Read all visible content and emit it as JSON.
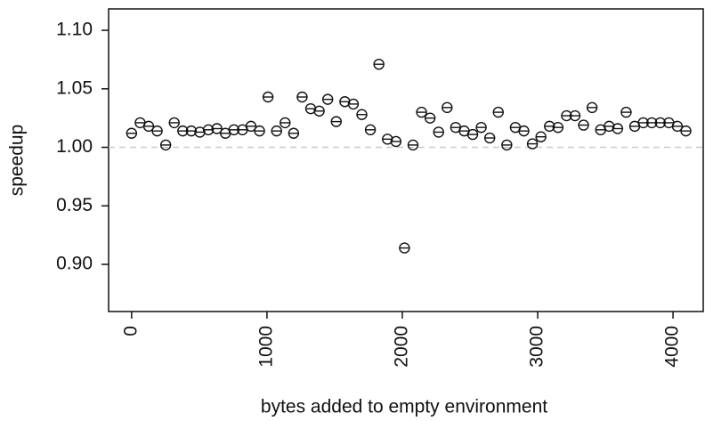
{
  "chart_data": {
    "type": "scatter",
    "x_label": "bytes added to empty environment",
    "y_label": "speedup",
    "x": [
      0,
      63,
      126,
      189,
      252,
      315,
      378,
      441,
      504,
      567,
      630,
      693,
      756,
      819,
      882,
      945,
      1008,
      1071,
      1134,
      1197,
      1260,
      1323,
      1386,
      1449,
      1512,
      1575,
      1638,
      1701,
      1764,
      1827,
      1890,
      1953,
      2016,
      2079,
      2142,
      2205,
      2268,
      2331,
      2394,
      2457,
      2520,
      2583,
      2646,
      2709,
      2772,
      2835,
      2898,
      2961,
      3024,
      3087,
      3150,
      3213,
      3276,
      3339,
      3402,
      3465,
      3528,
      3591,
      3654,
      3717,
      3780,
      3843,
      3906,
      3969,
      4032,
      4095
    ],
    "values": [
      1.012,
      1.021,
      1.018,
      1.014,
      1.002,
      1.021,
      1.014,
      1.014,
      1.013,
      1.015,
      1.016,
      1.012,
      1.015,
      1.015,
      1.018,
      1.014,
      1.043,
      1.014,
      1.021,
      1.012,
      1.043,
      1.033,
      1.031,
      1.041,
      1.022,
      1.039,
      1.037,
      1.028,
      1.015,
      1.071,
      1.007,
      1.005,
      0.914,
      1.002,
      1.03,
      1.025,
      1.013,
      1.034,
      1.017,
      1.014,
      1.011,
      1.017,
      1.008,
      1.03,
      1.002,
      1.017,
      1.014,
      1.003,
      1.009,
      1.018,
      1.017,
      1.027,
      1.027,
      1.019,
      1.034,
      1.015,
      1.018,
      1.016,
      1.03,
      1.018,
      1.021,
      1.021,
      1.021,
      1.021,
      1.018,
      1.014
    ],
    "color": "#111111",
    "reference_line": 1.0,
    "xlim": [
      -170,
      4223
    ],
    "ylim": [
      0.8597,
      1.1183
    ],
    "xticks": [
      0,
      1000,
      2000,
      3000,
      4000
    ],
    "yticks": [
      {
        "value": 0.9,
        "label": "0.90"
      },
      0.95,
      {
        "value": 1.0,
        "label": "1.00"
      },
      1.05,
      {
        "value": 1.1,
        "label": "1.10"
      }
    ]
  }
}
